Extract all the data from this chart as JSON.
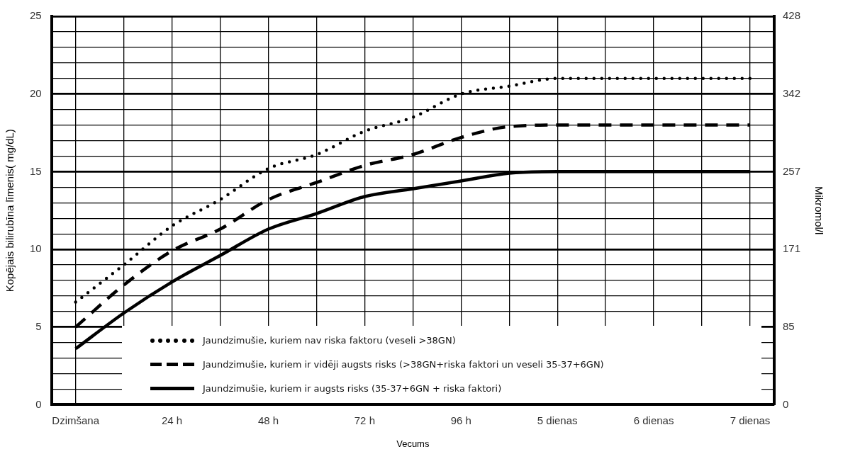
{
  "chart_data": {
    "type": "line",
    "xlabel": "Vecums",
    "ylabel": "Kopējais bilirubīna līmenis( mg/dL)",
    "y2label": "Mikromol/l",
    "categories": [
      "Dzimšana",
      null,
      "24 h",
      null,
      "48 h",
      null,
      "72 h",
      null,
      "96 h",
      null,
      "5 dienas",
      null,
      "6 dienas",
      null,
      "7 dienas"
    ],
    "series": [
      {
        "name": "Jaundzimušie, kuriem nav riska faktoru (veseli >38GN)",
        "color": "#000000",
        "line_style": "dotted",
        "values": [
          6.6,
          9.0,
          11.5,
          13.2,
          15.2,
          16.1,
          17.6,
          18.5,
          20.0,
          20.5,
          21.0,
          21.0,
          21.0,
          21.0,
          21.0
        ]
      },
      {
        "name": "Jaundzimušie, kuriem ir vidēji augsts risks (>38GN+riska faktori un veseli 35-37+6GN)",
        "color": "#000000",
        "line_style": "dashed",
        "values": [
          5.0,
          7.7,
          9.9,
          11.3,
          13.2,
          14.3,
          15.4,
          16.1,
          17.2,
          17.9,
          18.0,
          18.0,
          18.0,
          18.0,
          18.0
        ]
      },
      {
        "name": "Jaundzimušie, kuriem ir augsts risks (35-37+6GN + riska faktori)",
        "color": "#000000",
        "line_style": "solid",
        "values": [
          3.6,
          5.9,
          7.9,
          9.6,
          11.3,
          12.3,
          13.4,
          13.9,
          14.4,
          14.9,
          15.0,
          15.0,
          15.0,
          15.0,
          15.0
        ]
      }
    ],
    "ylim": [
      0,
      25
    ],
    "yticks": [
      0,
      {
        "value": 1,
        "label": null
      },
      {
        "value": 2,
        "label": null
      },
      {
        "value": 3,
        "label": null
      },
      {
        "value": 4,
        "label": null
      },
      5,
      {
        "value": 6,
        "label": null
      },
      {
        "value": 7,
        "label": null
      },
      {
        "value": 8,
        "label": null
      },
      {
        "value": 9,
        "label": null
      },
      10,
      {
        "value": 11,
        "label": null
      },
      {
        "value": 12,
        "label": null
      },
      {
        "value": 13,
        "label": null
      },
      {
        "value": 14,
        "label": null
      },
      15,
      {
        "value": 16,
        "label": null
      },
      {
        "value": 17,
        "label": null
      },
      {
        "value": 18,
        "label": null
      },
      {
        "value": 19,
        "label": null
      },
      20,
      {
        "value": 21,
        "label": null
      },
      {
        "value": 22,
        "label": null
      },
      {
        "value": 23,
        "label": null
      },
      {
        "value": 24,
        "label": null
      },
      25
    ],
    "y2lim": [
      0,
      427.5
    ],
    "y2ticks": [
      0,
      {
        "value": 85.5,
        "label": "85"
      },
      171,
      {
        "value": 256.5,
        "label": "257"
      },
      342,
      {
        "value": 427.5,
        "label": "428"
      }
    ],
    "grid": true,
    "legend": "bottom"
  }
}
